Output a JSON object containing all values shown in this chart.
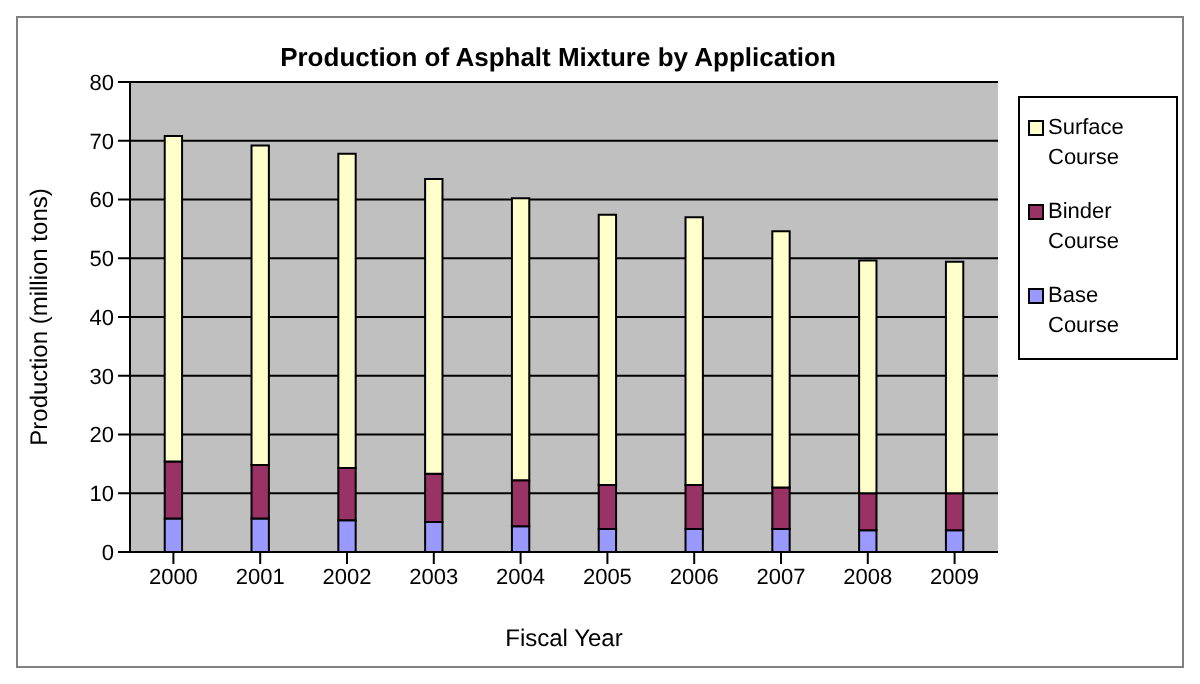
{
  "chart_data": {
    "type": "bar",
    "title": "Production of Asphalt Mixture by Application",
    "xlabel": "Fiscal Year",
    "ylabel": "Production (million tons)",
    "categories": [
      "2000",
      "2001",
      "2002",
      "2003",
      "2004",
      "2005",
      "2006",
      "2007",
      "2008",
      "2009"
    ],
    "stacked": true,
    "series": [
      {
        "name": "Base Course",
        "color": "#9999ff",
        "values": [
          5.7,
          5.7,
          5.4,
          5.1,
          4.4,
          3.9,
          3.9,
          3.9,
          3.7,
          3.7
        ]
      },
      {
        "name": "Binder Course",
        "color": "#993366",
        "values": [
          9.7,
          9.1,
          8.9,
          8.2,
          7.8,
          7.5,
          7.5,
          7.1,
          6.3,
          6.3
        ]
      },
      {
        "name": "Surface Course",
        "color": "#ffffcc",
        "values": [
          55.4,
          54.4,
          53.5,
          50.2,
          48.0,
          46.0,
          45.6,
          43.6,
          39.6,
          39.4
        ]
      }
    ],
    "ylim": [
      0,
      80
    ],
    "yticks": [
      0,
      10,
      20,
      30,
      40,
      50,
      60,
      70,
      80
    ],
    "grid": "y",
    "legend": "right"
  }
}
